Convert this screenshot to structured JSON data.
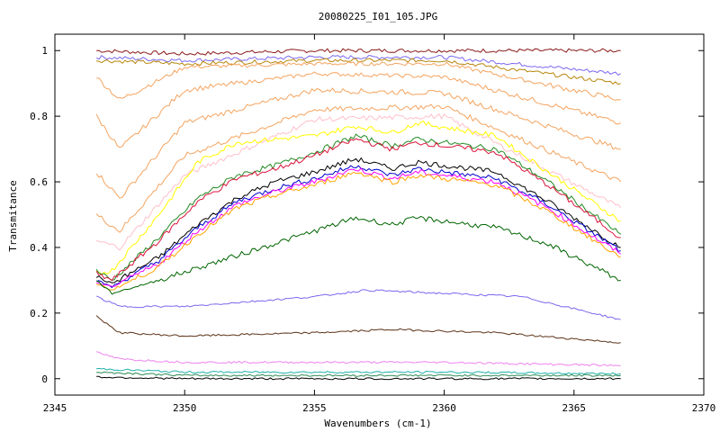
{
  "chart_data": {
    "type": "line",
    "title": "20080225_I01_105.JPG",
    "xlabel": "Wavenumbers (cm-1)",
    "ylabel": "Transmitance",
    "xlim": [
      2345,
      2370
    ],
    "ylim": [
      -0.05,
      1.05
    ],
    "xticks": [
      2345,
      2350,
      2355,
      2360,
      2365,
      2370
    ],
    "xtick_labels": [
      "2345",
      "2350",
      "2355",
      "2360",
      "2365",
      "2370"
    ],
    "yticks": [
      0,
      0.2,
      0.4,
      0.6,
      0.8,
      1
    ],
    "ytick_labels": [
      "0",
      "0.2",
      "0.4",
      "0.6",
      "0.8",
      "1"
    ],
    "grid": false,
    "legend": "none",
    "x_range_data": [
      2346.6,
      2366.8
    ],
    "series": [
      {
        "color": "#8b1a1a",
        "values": [
          [
            2346.6,
            1.0
          ],
          [
            2350,
            0.99
          ],
          [
            2355,
            1.0
          ],
          [
            2360,
            1.0
          ],
          [
            2366.8,
            1.0
          ]
        ]
      },
      {
        "color": "#7b68ee",
        "values": [
          [
            2346.6,
            0.98
          ],
          [
            2350,
            0.97
          ],
          [
            2355,
            0.98
          ],
          [
            2360,
            0.98
          ],
          [
            2366.8,
            0.93
          ]
        ]
      },
      {
        "color": "#b8860b",
        "values": [
          [
            2346.6,
            0.97
          ],
          [
            2350,
            0.96
          ],
          [
            2355,
            0.97
          ],
          [
            2360,
            0.97
          ],
          [
            2366.8,
            0.9
          ]
        ]
      },
      {
        "color": "#f4a460",
        "values": [
          [
            2346.6,
            0.92
          ],
          [
            2347.5,
            0.85
          ],
          [
            2350,
            0.95
          ],
          [
            2355,
            0.96
          ],
          [
            2360,
            0.96
          ],
          [
            2366.8,
            0.85
          ]
        ]
      },
      {
        "color": "#f4a460",
        "values": [
          [
            2346.6,
            0.8
          ],
          [
            2347.5,
            0.7
          ],
          [
            2350,
            0.88
          ],
          [
            2355,
            0.93
          ],
          [
            2360,
            0.92
          ],
          [
            2366.8,
            0.78
          ]
        ]
      },
      {
        "color": "#f4a460",
        "values": [
          [
            2346.6,
            0.63
          ],
          [
            2347.5,
            0.55
          ],
          [
            2350,
            0.78
          ],
          [
            2355,
            0.88
          ],
          [
            2360,
            0.87
          ],
          [
            2366.8,
            0.7
          ]
        ]
      },
      {
        "color": "#f4a460",
        "values": [
          [
            2346.6,
            0.5
          ],
          [
            2347.5,
            0.45
          ],
          [
            2350,
            0.68
          ],
          [
            2355,
            0.82
          ],
          [
            2360,
            0.83
          ],
          [
            2366.8,
            0.6
          ]
        ]
      },
      {
        "color": "#ffc0cb",
        "values": [
          [
            2346.6,
            0.42
          ],
          [
            2347.5,
            0.4
          ],
          [
            2350,
            0.62
          ],
          [
            2355,
            0.79
          ],
          [
            2360,
            0.8
          ],
          [
            2366.8,
            0.52
          ]
        ]
      },
      {
        "color": "#ffff00",
        "values": [
          [
            2346.6,
            0.32
          ],
          [
            2347.2,
            0.33
          ],
          [
            2349,
            0.5
          ],
          [
            2350.5,
            0.66
          ],
          [
            2352,
            0.72
          ],
          [
            2355,
            0.74
          ],
          [
            2356.6,
            0.77
          ],
          [
            2358,
            0.75
          ],
          [
            2359,
            0.78
          ],
          [
            2362,
            0.74
          ],
          [
            2364,
            0.63
          ],
          [
            2366.8,
            0.48
          ]
        ]
      },
      {
        "color": "#228b22",
        "values": [
          [
            2346.6,
            0.33
          ],
          [
            2347.2,
            0.3
          ],
          [
            2349,
            0.43
          ],
          [
            2350.5,
            0.55
          ],
          [
            2352,
            0.62
          ],
          [
            2353.5,
            0.65
          ],
          [
            2355,
            0.69
          ],
          [
            2356.6,
            0.74
          ],
          [
            2358,
            0.71
          ],
          [
            2359,
            0.73
          ],
          [
            2362,
            0.7
          ],
          [
            2364,
            0.6
          ],
          [
            2366.8,
            0.44
          ]
        ]
      },
      {
        "color": "#dc143c",
        "values": [
          [
            2346.6,
            0.32
          ],
          [
            2347.2,
            0.3
          ],
          [
            2349,
            0.42
          ],
          [
            2350.5,
            0.54
          ],
          [
            2352,
            0.61
          ],
          [
            2353.5,
            0.64
          ],
          [
            2355,
            0.68
          ],
          [
            2356.6,
            0.73
          ],
          [
            2358,
            0.7
          ],
          [
            2359,
            0.72
          ],
          [
            2362,
            0.69
          ],
          [
            2364,
            0.59
          ],
          [
            2366.8,
            0.43
          ]
        ]
      },
      {
        "color": "#000000",
        "values": [
          [
            2346.6,
            0.31
          ],
          [
            2347.2,
            0.29
          ],
          [
            2349,
            0.37
          ],
          [
            2350.5,
            0.47
          ],
          [
            2352,
            0.55
          ],
          [
            2353.5,
            0.6
          ],
          [
            2355,
            0.63
          ],
          [
            2356.6,
            0.67
          ],
          [
            2358,
            0.64
          ],
          [
            2359,
            0.66
          ],
          [
            2362,
            0.63
          ],
          [
            2364,
            0.54
          ],
          [
            2366.8,
            0.4
          ]
        ]
      },
      {
        "color": "#0000cd",
        "values": [
          [
            2346.6,
            0.3
          ],
          [
            2347.2,
            0.28
          ],
          [
            2349,
            0.36
          ],
          [
            2350.5,
            0.46
          ],
          [
            2352,
            0.54
          ],
          [
            2353.5,
            0.58
          ],
          [
            2355,
            0.61
          ],
          [
            2356.6,
            0.65
          ],
          [
            2358,
            0.62
          ],
          [
            2359,
            0.64
          ],
          [
            2362,
            0.61
          ],
          [
            2364,
            0.53
          ],
          [
            2366.8,
            0.39
          ]
        ]
      },
      {
        "color": "#ff00ff",
        "values": [
          [
            2346.6,
            0.29
          ],
          [
            2347.2,
            0.28
          ],
          [
            2349,
            0.35
          ],
          [
            2350.5,
            0.45
          ],
          [
            2352,
            0.53
          ],
          [
            2353.5,
            0.57
          ],
          [
            2355,
            0.6
          ],
          [
            2356.6,
            0.64
          ],
          [
            2358,
            0.61
          ],
          [
            2359,
            0.63
          ],
          [
            2362,
            0.6
          ],
          [
            2364,
            0.52
          ],
          [
            2366.8,
            0.38
          ]
        ]
      },
      {
        "color": "#ffa500",
        "values": [
          [
            2346.6,
            0.29
          ],
          [
            2347.2,
            0.27
          ],
          [
            2349,
            0.34
          ],
          [
            2350.5,
            0.44
          ],
          [
            2352,
            0.52
          ],
          [
            2353.5,
            0.56
          ],
          [
            2355,
            0.59
          ],
          [
            2356.6,
            0.63
          ],
          [
            2358,
            0.6
          ],
          [
            2359,
            0.62
          ],
          [
            2362,
            0.59
          ],
          [
            2364,
            0.51
          ],
          [
            2366.8,
            0.37
          ]
        ]
      },
      {
        "color": "#006400",
        "values": [
          [
            2346.6,
            0.3
          ],
          [
            2347.2,
            0.26
          ],
          [
            2349,
            0.3
          ],
          [
            2351,
            0.35
          ],
          [
            2353,
            0.4
          ],
          [
            2355,
            0.45
          ],
          [
            2356.6,
            0.49
          ],
          [
            2358,
            0.47
          ],
          [
            2359,
            0.49
          ],
          [
            2362,
            0.46
          ],
          [
            2364,
            0.41
          ],
          [
            2366.8,
            0.3
          ]
        ]
      },
      {
        "color": "#7b68ee",
        "values": [
          [
            2346.6,
            0.25
          ],
          [
            2347.5,
            0.22
          ],
          [
            2350,
            0.22
          ],
          [
            2355,
            0.25
          ],
          [
            2357,
            0.27
          ],
          [
            2360,
            0.26
          ],
          [
            2363,
            0.25
          ],
          [
            2366.8,
            0.18
          ]
        ]
      },
      {
        "color": "#5c3317",
        "values": [
          [
            2346.6,
            0.19
          ],
          [
            2347.5,
            0.14
          ],
          [
            2350,
            0.13
          ],
          [
            2355,
            0.14
          ],
          [
            2358,
            0.15
          ],
          [
            2362,
            0.14
          ],
          [
            2366.8,
            0.11
          ]
        ]
      },
      {
        "color": "#ee82ee",
        "values": [
          [
            2346.6,
            0.08
          ],
          [
            2347.5,
            0.06
          ],
          [
            2350,
            0.05
          ],
          [
            2355,
            0.05
          ],
          [
            2360,
            0.05
          ],
          [
            2366.8,
            0.04
          ]
        ]
      },
      {
        "color": "#20b2aa",
        "values": [
          [
            2346.6,
            0.03
          ],
          [
            2350,
            0.02
          ],
          [
            2355,
            0.02
          ],
          [
            2360,
            0.02
          ],
          [
            2366.8,
            0.015
          ]
        ]
      },
      {
        "color": "#2e8b57",
        "values": [
          [
            2346.6,
            0.02
          ],
          [
            2350,
            0.01
          ],
          [
            2355,
            0.01
          ],
          [
            2360,
            0.01
          ],
          [
            2366.8,
            0.01
          ]
        ]
      },
      {
        "color": "#000000",
        "values": [
          [
            2346.6,
            0.005
          ],
          [
            2350,
            0.0
          ],
          [
            2355,
            0.0
          ],
          [
            2360,
            0.0
          ],
          [
            2366.8,
            0.0
          ]
        ]
      }
    ]
  }
}
